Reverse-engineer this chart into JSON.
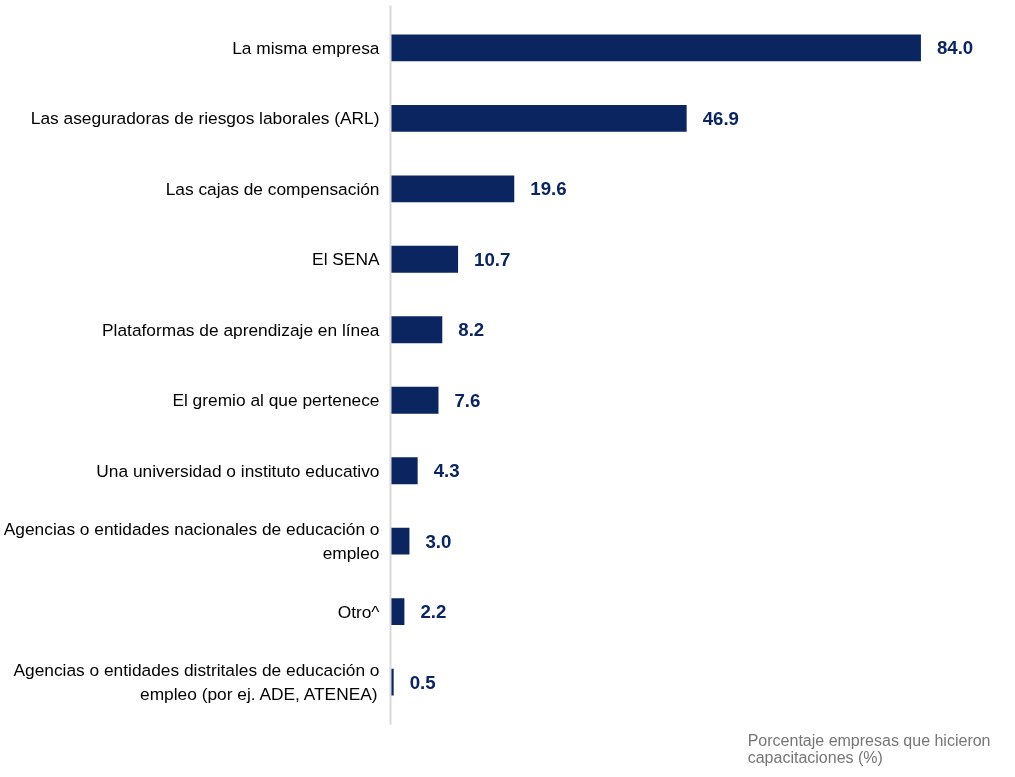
{
  "chart_data": {
    "type": "bar",
    "orientation": "horizontal",
    "categories": [
      "La misma empresa",
      "Las aseguradoras de riesgos laborales (ARL)",
      "Las cajas de compensación",
      "El SENA",
      "Plataformas de aprendizaje en línea",
      "El gremio al que pertenece",
      "Una universidad o instituto educativo",
      "Agencias o entidades nacionales de educación o empleo",
      "Otro^",
      "Agencias o entidades distritales de educación o empleo (por ej. ADE, ATENEA)"
    ],
    "values": [
      84.0,
      46.9,
      19.6,
      10.7,
      8.2,
      7.6,
      4.3,
      3.0,
      2.2,
      0.5
    ],
    "value_labels": [
      "84.0",
      "46.9",
      "19.6",
      "10.7",
      "8.2",
      "7.6",
      "4.3",
      "3.0",
      "2.2",
      "0.5"
    ],
    "color": "#0a2560",
    "xlabel": "Porcentaje empresas que hicieron capacitaciones (%)",
    "tick_labels": "y",
    "grid": false
  }
}
